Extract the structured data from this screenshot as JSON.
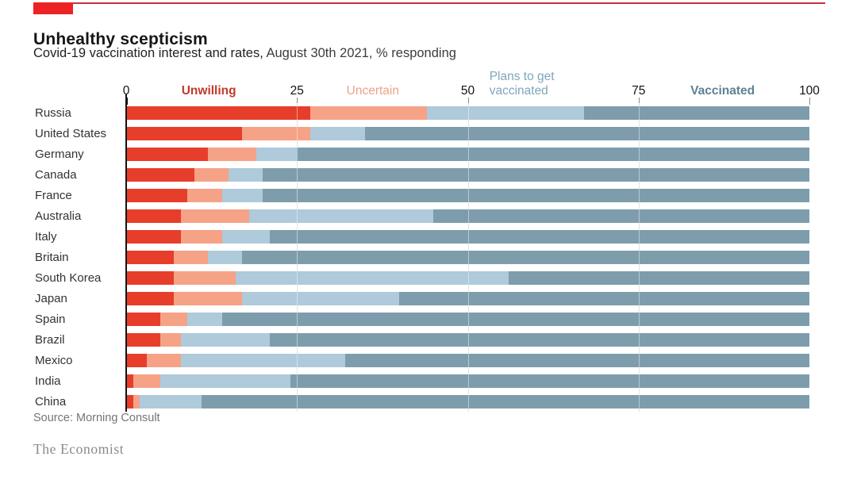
{
  "header": {
    "title": "Unhealthy scepticism",
    "subtitle_strong": "Covid-19 vaccination interest and rates,",
    "subtitle_light": " August 30th 2021, % responding"
  },
  "chart_data": {
    "type": "bar",
    "stacked": true,
    "orientation": "horizontal",
    "title": "Unhealthy scepticism",
    "subtitle": "Covid-19 vaccination interest and rates, August 30th 2021, % responding",
    "xlim": [
      0,
      100
    ],
    "x_ticks": [
      0,
      25,
      50,
      75,
      100
    ],
    "grid_ticks": [
      25,
      50,
      75
    ],
    "legend_position": "top-inline",
    "categories": [
      "Russia",
      "United States",
      "Germany",
      "Canada",
      "France",
      "Australia",
      "Italy",
      "Britain",
      "South Korea",
      "Japan",
      "Spain",
      "Brazil",
      "Mexico",
      "India",
      "China"
    ],
    "series": [
      {
        "name": "Unwilling",
        "color": "#e73e2c",
        "label_color": "#c13a2b",
        "values": [
          27,
          17,
          12,
          10,
          9,
          8,
          8,
          7,
          7,
          7,
          5,
          5,
          3,
          1,
          1
        ]
      },
      {
        "name": "Uncertain",
        "color": "#f5a287",
        "label_color": "#efa189",
        "values": [
          17,
          10,
          7,
          5,
          5,
          10,
          6,
          5,
          9,
          10,
          4,
          3,
          5,
          4,
          1
        ]
      },
      {
        "name": "Plans to get vaccinated",
        "color": "#aecadb",
        "label_color": "#7fa6bb",
        "values": [
          23,
          8,
          6,
          5,
          6,
          27,
          7,
          5,
          40,
          23,
          5,
          13,
          24,
          19,
          9
        ]
      },
      {
        "name": "Vaccinated",
        "color": "#7e9dac",
        "label_color": "#5d8196",
        "values": [
          33,
          65,
          75,
          80,
          80,
          55,
          79,
          83,
          44,
          60,
          86,
          79,
          68,
          76,
          89
        ]
      }
    ]
  },
  "footer": {
    "source": "Source: Morning Consult",
    "brand": "The Economist"
  }
}
